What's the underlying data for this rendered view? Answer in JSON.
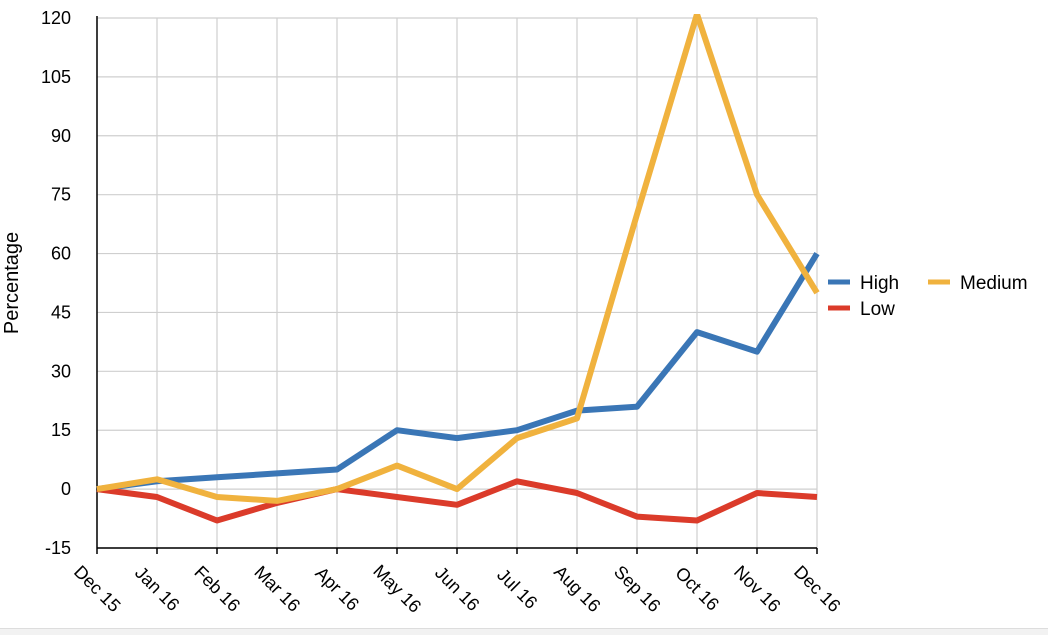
{
  "chart_data": {
    "type": "line",
    "categories": [
      "Dec 15",
      "Jan 16",
      "Feb 16",
      "Mar 16",
      "Apr 16",
      "May 16",
      "Jun 16",
      "Jul 16",
      "Aug 16",
      "Sep 16",
      "Oct 16",
      "Nov 16",
      "Dec 16"
    ],
    "series": [
      {
        "name": "High",
        "color": "#3a76b6",
        "values": [
          0,
          2,
          3,
          4,
          5,
          15,
          13,
          15,
          20,
          21,
          40,
          35,
          60
        ]
      },
      {
        "name": "Low",
        "color": "#db3b2a",
        "values": [
          0,
          -2,
          -8,
          -3.5,
          0,
          -2,
          -4,
          2,
          -1,
          -7,
          -8,
          -1,
          -2
        ]
      },
      {
        "name": "Medium",
        "color": "#f0b23e",
        "values": [
          0,
          2.5,
          -2,
          -3,
          0,
          6,
          0,
          13,
          18,
          70,
          121,
          75,
          50
        ]
      }
    ],
    "title": "",
    "xlabel": "",
    "ylabel": "Percentage",
    "ylim": [
      -15,
      120
    ],
    "yticks": [
      "120",
      "105",
      "90",
      "75",
      "60",
      "45",
      "30",
      "15",
      "0",
      "-15"
    ],
    "grid": true,
    "legend_position": "right"
  }
}
